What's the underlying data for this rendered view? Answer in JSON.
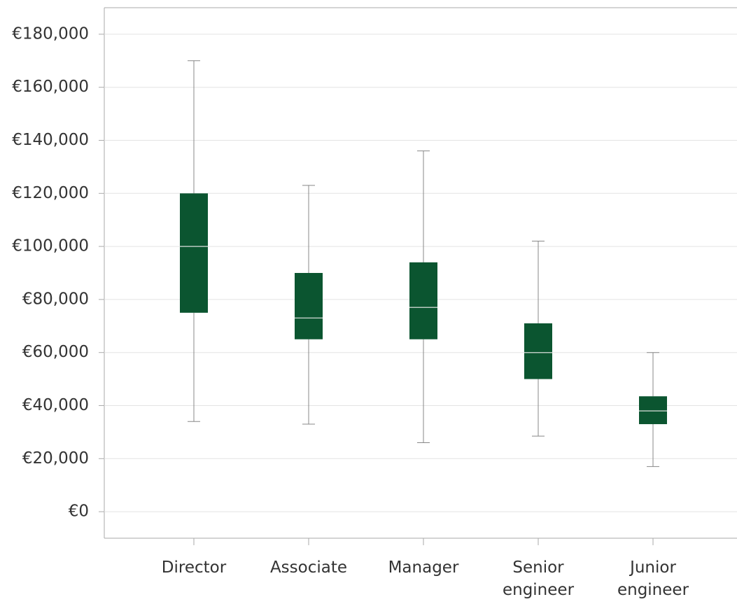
{
  "chart_data": {
    "type": "box",
    "categories": [
      "Director",
      "Associate",
      "Manager",
      "Senior engineer",
      "Junior engineer"
    ],
    "boxes": [
      {
        "min": 34000,
        "q1": 75000,
        "median": 100000,
        "q3": 120000,
        "max": 170000
      },
      {
        "min": 33000,
        "q1": 65000,
        "median": 73000,
        "q3": 90000,
        "max": 123000
      },
      {
        "min": 26000,
        "q1": 65000,
        "median": 77000,
        "q3": 94000,
        "max": 136000
      },
      {
        "min": 28500,
        "q1": 50000,
        "median": 60000,
        "q3": 71000,
        "max": 102000
      },
      {
        "min": 17000,
        "q1": 33000,
        "median": 38000,
        "q3": 43500,
        "max": 60000
      }
    ],
    "color": "#0b5530",
    "ylim": [
      -10000,
      190000
    ],
    "yticks": [
      {
        "value": 0,
        "label": "€0"
      },
      {
        "value": 20000,
        "label": "€20,000"
      },
      {
        "value": 40000,
        "label": "€40,000"
      },
      {
        "value": 60000,
        "label": "€60,000"
      },
      {
        "value": 80000,
        "label": "€80,000"
      },
      {
        "value": 100000,
        "label": "€100,000"
      },
      {
        "value": 120000,
        "label": "€120,000"
      },
      {
        "value": 140000,
        "label": "€140,000"
      },
      {
        "value": 160000,
        "label": "€160,000"
      },
      {
        "value": 180000,
        "label": "€180,000"
      }
    ],
    "grid": true
  }
}
